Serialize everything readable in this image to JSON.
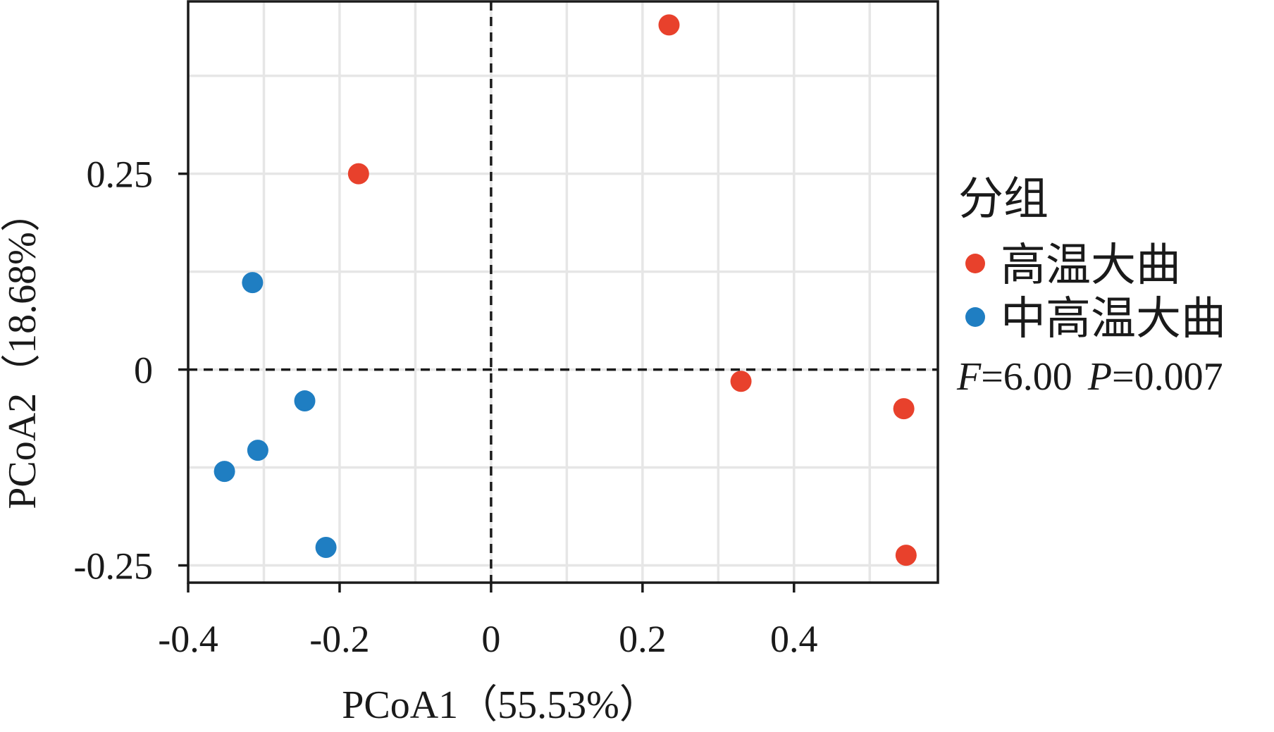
{
  "chart_data": {
    "type": "scatter",
    "xlabel": "PCoA1（55.53%）",
    "ylabel": "PCoA2（18.68%）",
    "xlim": [
      -0.4,
      0.59
    ],
    "ylim": [
      -0.272,
      0.47
    ],
    "x_ticks": [
      -0.4,
      -0.2,
      0,
      0.2,
      0.4
    ],
    "x_tick_labels": [
      "-0.4",
      "-0.2",
      "0",
      "0.2",
      "0.4"
    ],
    "y_ticks": [
      -0.25,
      0,
      0.25
    ],
    "y_tick_labels": [
      "-0.25",
      "0",
      "0.25"
    ],
    "x_grid": [
      -0.4,
      -0.3,
      -0.2,
      -0.1,
      0,
      0.1,
      0.2,
      0.3,
      0.4,
      0.5
    ],
    "y_grid": [
      -0.25,
      -0.125,
      0,
      0.125,
      0.25,
      0.375
    ],
    "grid": true,
    "reference_lines": {
      "x": 0,
      "y": 0,
      "style": "dashed"
    },
    "legend": {
      "title": "分组",
      "placement": "right"
    },
    "series": [
      {
        "name": "高温大曲",
        "color": "#e8412c",
        "points": [
          {
            "x": 0.235,
            "y": 0.44
          },
          {
            "x": -0.175,
            "y": 0.25
          },
          {
            "x": 0.33,
            "y": -0.015
          },
          {
            "x": 0.545,
            "y": -0.05
          },
          {
            "x": 0.548,
            "y": -0.237
          }
        ]
      },
      {
        "name": "中高温大曲",
        "color": "#1f7ec2",
        "points": [
          {
            "x": -0.315,
            "y": 0.111
          },
          {
            "x": -0.246,
            "y": -0.04
          },
          {
            "x": -0.308,
            "y": -0.103
          },
          {
            "x": -0.352,
            "y": -0.13
          },
          {
            "x": -0.218,
            "y": -0.227
          }
        ]
      }
    ],
    "annotation": {
      "f_label": "F",
      "f_value": "=6.00",
      "p_label": "P",
      "p_value": "=0.007"
    }
  }
}
